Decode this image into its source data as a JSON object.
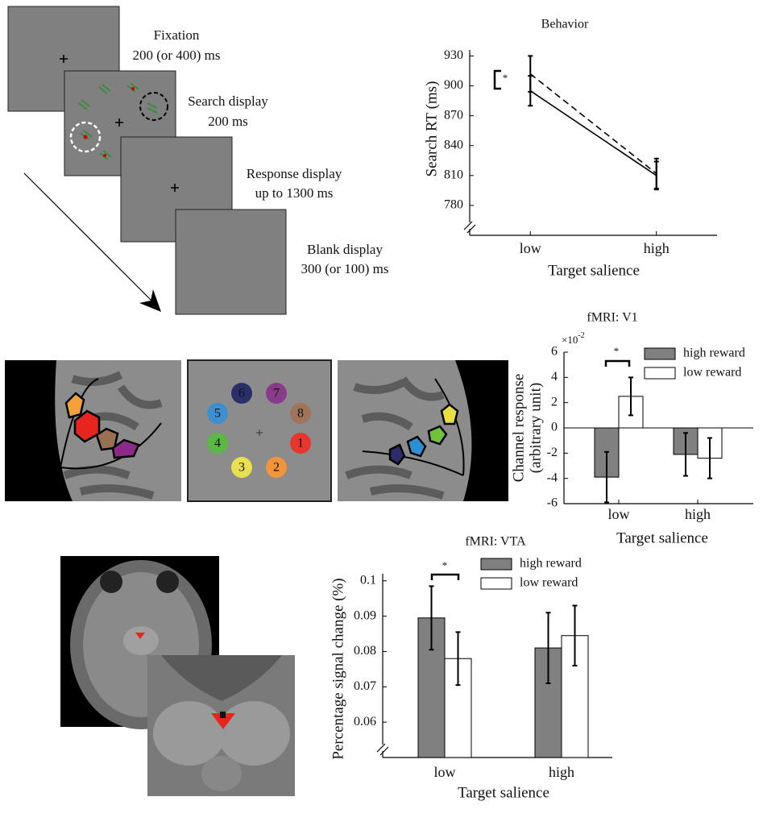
{
  "chart_data": [
    {
      "type": "line",
      "title": "Behavior",
      "categories": [
        "low",
        "high"
      ],
      "series": [
        {
          "color": "#000000",
          "dash": false,
          "values": [
            895,
            810
          ],
          "errors": [
            15,
            14
          ]
        },
        {
          "color": "#000000",
          "dash": true,
          "values": [
            912,
            812
          ],
          "errors": [
            18,
            15
          ]
        }
      ],
      "ylim": [
        750,
        936
      ],
      "yticks": [
        780,
        810,
        840,
        870,
        900,
        930
      ],
      "xlabel": "Target salience",
      "ylabel": [
        "Search RT (ms)"
      ],
      "annotations": [
        "*"
      ]
    },
    {
      "type": "bar",
      "title": "fMRI: V1",
      "categories": [
        "low",
        "high"
      ],
      "series": [
        {
          "name": "high reward",
          "color": "#808080",
          "values": [
            -3.9,
            -2.1
          ],
          "errors": [
            2.0,
            1.7
          ]
        },
        {
          "name": "low reward",
          "color": "#ffffff",
          "values": [
            2.5,
            -2.4
          ],
          "errors": [
            1.5,
            1.6
          ]
        }
      ],
      "ylim": [
        -6,
        6
      ],
      "yticks": [
        6,
        4,
        2,
        0,
        -2,
        -4,
        -6
      ],
      "y_multiplier": {
        "base": "×10",
        "exponent": "-2"
      },
      "xlabel": "Target salience",
      "ylabel": [
        "Channel response",
        "(arbitrary unit)"
      ],
      "annotations": [
        "*"
      ],
      "legend": "upper right"
    },
    {
      "type": "bar",
      "title": "fMRI: VTA",
      "categories": [
        "low",
        "high"
      ],
      "series": [
        {
          "name": "high reward",
          "color": "#808080",
          "values": [
            0.0895,
            0.081
          ],
          "errors": [
            0.009,
            0.01
          ]
        },
        {
          "name": "low reward",
          "color": "#ffffff",
          "values": [
            0.078,
            0.0845
          ],
          "errors": [
            0.0075,
            0.0085
          ]
        }
      ],
      "ylim": [
        0.05,
        0.102
      ],
      "yticks": [
        0.06,
        0.07,
        0.08,
        0.09,
        0.1
      ],
      "xlabel": "Target salience",
      "ylabel": [
        "Percentage signal change (%)"
      ],
      "annotations": [
        "*"
      ],
      "legend": "upper right"
    }
  ],
  "trial_sequence": [
    {
      "label": "Fixation",
      "duration": "200 (or 400) ms"
    },
    {
      "label": "Search display",
      "duration": "200 ms"
    },
    {
      "label": "Response display",
      "duration": "up to 1300 ms"
    },
    {
      "label": "Blank display",
      "duration": "300 (or 100) ms"
    }
  ],
  "roi_labels": [
    "1",
    "2",
    "3",
    "4",
    "5",
    "6",
    "7",
    "8"
  ]
}
